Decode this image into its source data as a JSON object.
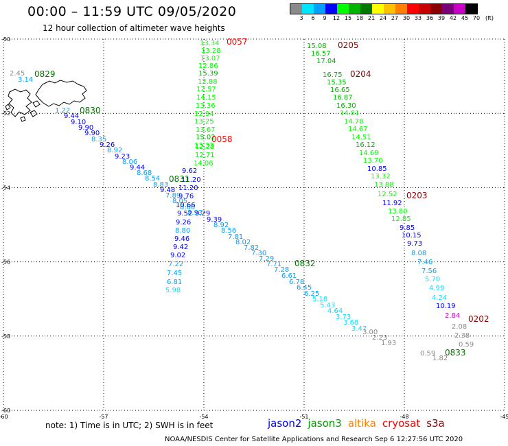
{
  "header": {
    "title": "00:00 – 11:59 UTC 09/05/2020",
    "subtitle": "12 hour collection of altimeter wave heights"
  },
  "color_scale": {
    "labels": [
      "3",
      "6",
      "9",
      "12",
      "15",
      "18",
      "21",
      "24",
      "27",
      "30",
      "33",
      "36",
      "39",
      "42",
      "45",
      "70",
      "(ft)"
    ],
    "colors": [
      "#8a8a8a",
      "#00e5ff",
      "#00a0ff",
      "#0000ff",
      "#00ff00",
      "#00b400",
      "#007800",
      "#ffff00",
      "#ffc000",
      "#ff8000",
      "#ff0000",
      "#c80000",
      "#8a0000",
      "#7a007a",
      "#c800c8",
      "#000000"
    ]
  },
  "map": {
    "lat_labels": [
      "-50",
      "-52",
      "-54",
      "-56",
      "-58",
      "-60"
    ],
    "lon_labels": [
      "-60",
      "-57",
      "-54",
      "-51",
      "-48",
      "-45"
    ],
    "lat_range": [
      -60,
      -50
    ],
    "lon_range": [
      -60,
      -45
    ],
    "grid": true
  },
  "tracks": [
    {
      "time": "0829",
      "time_color": "#007800",
      "points": [
        {
          "v": "2.45",
          "c": "#8a8a8a"
        },
        {
          "v": "3.14",
          "c": "#00a0ff"
        }
      ]
    },
    {
      "time": "0830",
      "time_color": "#007800",
      "points": [
        {
          "v": "1.22",
          "c": "#00a0ff"
        },
        {
          "v": "9.44",
          "c": "#0000ff"
        },
        {
          "v": "9.10",
          "c": "#0000ff"
        },
        {
          "v": "9.90",
          "c": "#0000ff"
        },
        {
          "v": "9.90",
          "c": "#0000ff"
        },
        {
          "v": "8.35",
          "c": "#00a0ff"
        },
        {
          "v": "9.26",
          "c": "#0000ff"
        },
        {
          "v": "8.92",
          "c": "#00a0ff"
        },
        {
          "v": "9.23",
          "c": "#0000ff"
        },
        {
          "v": "8.06",
          "c": "#00a0ff"
        },
        {
          "v": "9.44",
          "c": "#0000ff"
        },
        {
          "v": "8.68",
          "c": "#00a0ff"
        },
        {
          "v": "8.54",
          "c": "#00a0ff"
        },
        {
          "v": "8.83",
          "c": "#00a0ff"
        },
        {
          "v": "9.48",
          "c": "#0000ff"
        },
        {
          "v": "7.89",
          "c": "#00a0ff"
        },
        {
          "v": "8.05",
          "c": "#00a0ff"
        },
        {
          "v": "8.60",
          "c": "#00a0ff"
        },
        {
          "v": "8.93",
          "c": "#00a0ff"
        },
        {
          "v": "9.29",
          "c": "#0000ff"
        }
      ]
    },
    {
      "time": "0831",
      "time_color": "#007800",
      "points": [
        {
          "v": "9.62",
          "c": "#0000ff"
        },
        {
          "v": "11.20",
          "c": "#0000ff"
        },
        {
          "v": "11.20",
          "c": "#0000ff"
        },
        {
          "v": "9.76",
          "c": "#0000ff"
        },
        {
          "v": "10.66",
          "c": "#0000ff"
        },
        {
          "v": "9.52",
          "c": "#0000ff"
        },
        {
          "v": "9.26",
          "c": "#0000ff"
        },
        {
          "v": "8.80",
          "c": "#00a0ff"
        },
        {
          "v": "9.46",
          "c": "#0000ff"
        },
        {
          "v": "9.42",
          "c": "#0000ff"
        },
        {
          "v": "9.02",
          "c": "#0000ff"
        },
        {
          "v": "7.22",
          "c": "#00a0ff"
        },
        {
          "v": "7.45",
          "c": "#00a0ff"
        },
        {
          "v": "6.81",
          "c": "#00a0ff"
        },
        {
          "v": "5.98",
          "c": "#00e5ff"
        }
      ]
    },
    {
      "time": "0832",
      "time_color": "#007800",
      "points": [
        {
          "v": "9.39",
          "c": "#0000ff"
        },
        {
          "v": "8.92",
          "c": "#00a0ff"
        },
        {
          "v": "8.56",
          "c": "#00a0ff"
        },
        {
          "v": "7.81",
          "c": "#00a0ff"
        },
        {
          "v": "8.02",
          "c": "#00a0ff"
        },
        {
          "v": "7.82",
          "c": "#00a0ff"
        },
        {
          "v": "7.30",
          "c": "#00a0ff"
        },
        {
          "v": "7.29",
          "c": "#00a0ff"
        },
        {
          "v": "7.71",
          "c": "#00a0ff"
        },
        {
          "v": "7.28",
          "c": "#00a0ff"
        },
        {
          "v": "6.61",
          "c": "#00a0ff"
        },
        {
          "v": "6.78",
          "c": "#00a0ff"
        },
        {
          "v": "6.45",
          "c": "#00a0ff"
        },
        {
          "v": "6.25",
          "c": "#00a0ff"
        },
        {
          "v": "5.18",
          "c": "#00e5ff"
        },
        {
          "v": "5.43",
          "c": "#00e5ff"
        },
        {
          "v": "4.64",
          "c": "#00e5ff"
        },
        {
          "v": "3.73",
          "c": "#00e5ff"
        },
        {
          "v": "3.68",
          "c": "#00e5ff"
        },
        {
          "v": "3.47",
          "c": "#00e5ff"
        }
      ]
    },
    {
      "time": "0833",
      "time_color": "#007800",
      "points": [
        {
          "v": "3.00",
          "c": "#8a8a8a"
        },
        {
          "v": "2.23",
          "c": "#8a8a8a"
        },
        {
          "v": "1.93",
          "c": "#8a8a8a"
        },
        {
          "v": "0.59",
          "c": "#8a8a8a"
        },
        {
          "v": "1.82",
          "c": "#8a8a8a"
        }
      ]
    },
    {
      "time": "0057",
      "time_color": "#ff0000",
      "points": [
        {
          "v": "13.34",
          "c": "#00ff00"
        },
        {
          "v": "13.28",
          "c": "#00ff00"
        },
        {
          "v": "13.07",
          "c": "#00ff00"
        },
        {
          "v": "12.86",
          "c": "#00ff00"
        },
        {
          "v": "15.39",
          "c": "#00b400"
        },
        {
          "v": "12.88",
          "c": "#00ff00"
        },
        {
          "v": "12.57",
          "c": "#00ff00"
        },
        {
          "v": "14.15",
          "c": "#00ff00"
        },
        {
          "v": "13.36",
          "c": "#00ff00"
        },
        {
          "v": "12.94",
          "c": "#00ff00"
        },
        {
          "v": "13.25",
          "c": "#00ff00"
        },
        {
          "v": "13.67",
          "c": "#00ff00"
        },
        {
          "v": "15.02",
          "c": "#00b400"
        },
        {
          "v": "13.33",
          "c": "#00ff00"
        }
      ]
    },
    {
      "time": "0058",
      "time_color": "#ff0000",
      "points": [
        {
          "v": "12.28",
          "c": "#00ff00"
        },
        {
          "v": "12.71",
          "c": "#00ff00"
        },
        {
          "v": "14.06",
          "c": "#00ff00"
        }
      ]
    },
    {
      "time": "0205",
      "time_color": "#8a0000",
      "points": [
        {
          "v": "15.08",
          "c": "#00b400"
        },
        {
          "v": "16.57",
          "c": "#00b400"
        },
        {
          "v": "17.04",
          "c": "#00b400"
        }
      ]
    },
    {
      "time": "0204",
      "time_color": "#8a0000",
      "points": [
        {
          "v": "16.75",
          "c": "#00b400"
        },
        {
          "v": "15.35",
          "c": "#00b400"
        },
        {
          "v": "16.65",
          "c": "#00b400"
        },
        {
          "v": "16.87",
          "c": "#00b400"
        },
        {
          "v": "16.30",
          "c": "#00b400"
        },
        {
          "v": "14.81",
          "c": "#00ff00"
        },
        {
          "v": "14.78",
          "c": "#00ff00"
        },
        {
          "v": "14.67",
          "c": "#00ff00"
        },
        {
          "v": "14.51",
          "c": "#00ff00"
        },
        {
          "v": "16.12",
          "c": "#00b400"
        },
        {
          "v": "14.69",
          "c": "#00ff00"
        },
        {
          "v": "13.70",
          "c": "#00ff00"
        },
        {
          "v": "10.85",
          "c": "#0000ff"
        },
        {
          "v": "13.32",
          "c": "#00ff00"
        },
        {
          "v": "13.88",
          "c": "#00ff00"
        },
        {
          "v": "12.52",
          "c": "#00ff00"
        }
      ]
    },
    {
      "time": "0203",
      "time_color": "#8a0000",
      "points": [
        {
          "v": "11.92",
          "c": "#0000ff"
        },
        {
          "v": "13.80",
          "c": "#00ff00"
        },
        {
          "v": "12.85",
          "c": "#00ff00"
        },
        {
          "v": "9.85",
          "c": "#0000ff"
        },
        {
          "v": "10.15",
          "c": "#0000ff"
        },
        {
          "v": "9.73",
          "c": "#0000ff"
        },
        {
          "v": "8.08",
          "c": "#00a0ff"
        },
        {
          "v": "7.46",
          "c": "#00a0ff"
        },
        {
          "v": "7.56",
          "c": "#00a0ff"
        },
        {
          "v": "5.70",
          "c": "#00e5ff"
        },
        {
          "v": "4.99",
          "c": "#00e5ff"
        },
        {
          "v": "4.24",
          "c": "#00e5ff"
        },
        {
          "v": "10.19",
          "c": "#0000ff"
        }
      ]
    },
    {
      "time": "0202",
      "time_color": "#8a0000",
      "points": [
        {
          "v": "2.84",
          "c": "#c800c8"
        },
        {
          "v": "2.08",
          "c": "#8a8a8a"
        },
        {
          "v": "2.38",
          "c": "#8a8a8a"
        },
        {
          "v": "0.59",
          "c": "#8a8a8a"
        }
      ]
    }
  ],
  "footer": {
    "note": "note: 1) Time is in UTC; 2) SWH is in feet",
    "sources": [
      {
        "name": "jason2",
        "color": "#0000ff"
      },
      {
        "name": "jason3",
        "color": "#00a000"
      },
      {
        "name": "altika",
        "color": "#ff8000"
      },
      {
        "name": "cryosat",
        "color": "#ff0000"
      },
      {
        "name": "s3a",
        "color": "#8a0000"
      }
    ],
    "credit": "NOAA/NESDIS Center for Satellite Applications and Research   Sep  6 12:27:56 UTC 2020"
  }
}
